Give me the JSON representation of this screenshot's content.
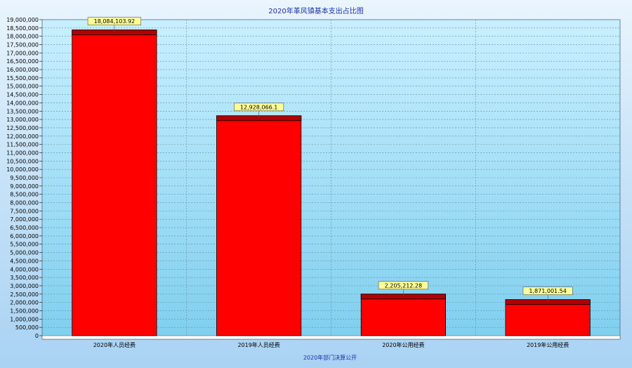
{
  "chart_data": {
    "type": "bar",
    "title": "2020年革风镇基本支出占比图",
    "xlabel": "2020年部门决算公开",
    "ylabel": "",
    "categories": [
      "2020年人员经费",
      "2019年人员经费",
      "2020年公用经费",
      "2019年公用经费"
    ],
    "values": [
      18084103.92,
      12928066.1,
      2205212.28,
      1871001.54
    ],
    "data_labels": [
      "18,084,103.92",
      "12,928,066.1",
      "2,205,212.28",
      "1,871,001.54"
    ],
    "ylim": [
      0,
      19000000
    ],
    "y_tick_step": 500000,
    "y_tick_labels": [
      "0",
      "500,000",
      "1,000,000",
      "1,500,000",
      "2,000,000",
      "2,500,000",
      "3,000,000",
      "3,500,000",
      "4,000,000",
      "4,500,000",
      "5,000,000",
      "5,500,000",
      "6,000,000",
      "6,500,000",
      "7,000,000",
      "7,500,000",
      "8,000,000",
      "8,500,000",
      "9,000,000",
      "9,500,000",
      "10,000,000",
      "10,500,000",
      "11,000,000",
      "11,500,000",
      "12,000,000",
      "12,500,000",
      "13,000,000",
      "13,500,000",
      "14,000,000",
      "14,500,000",
      "15,000,000",
      "15,500,000",
      "16,000,000",
      "16,500,000",
      "17,000,000",
      "17,500,000",
      "18,000,000",
      "18,500,000",
      "19,000,000"
    ],
    "grid": true,
    "legend": "none",
    "colors": {
      "bar": "#ff0000",
      "bar_top": "#b40000",
      "bar_edge": "#000000",
      "plot_bg_top": "#c8efff",
      "plot_bg_bottom": "#7fcfee",
      "grid": "#6a8aa0",
      "label_bg": "#ffff99",
      "title": "#1f2fb0"
    }
  }
}
